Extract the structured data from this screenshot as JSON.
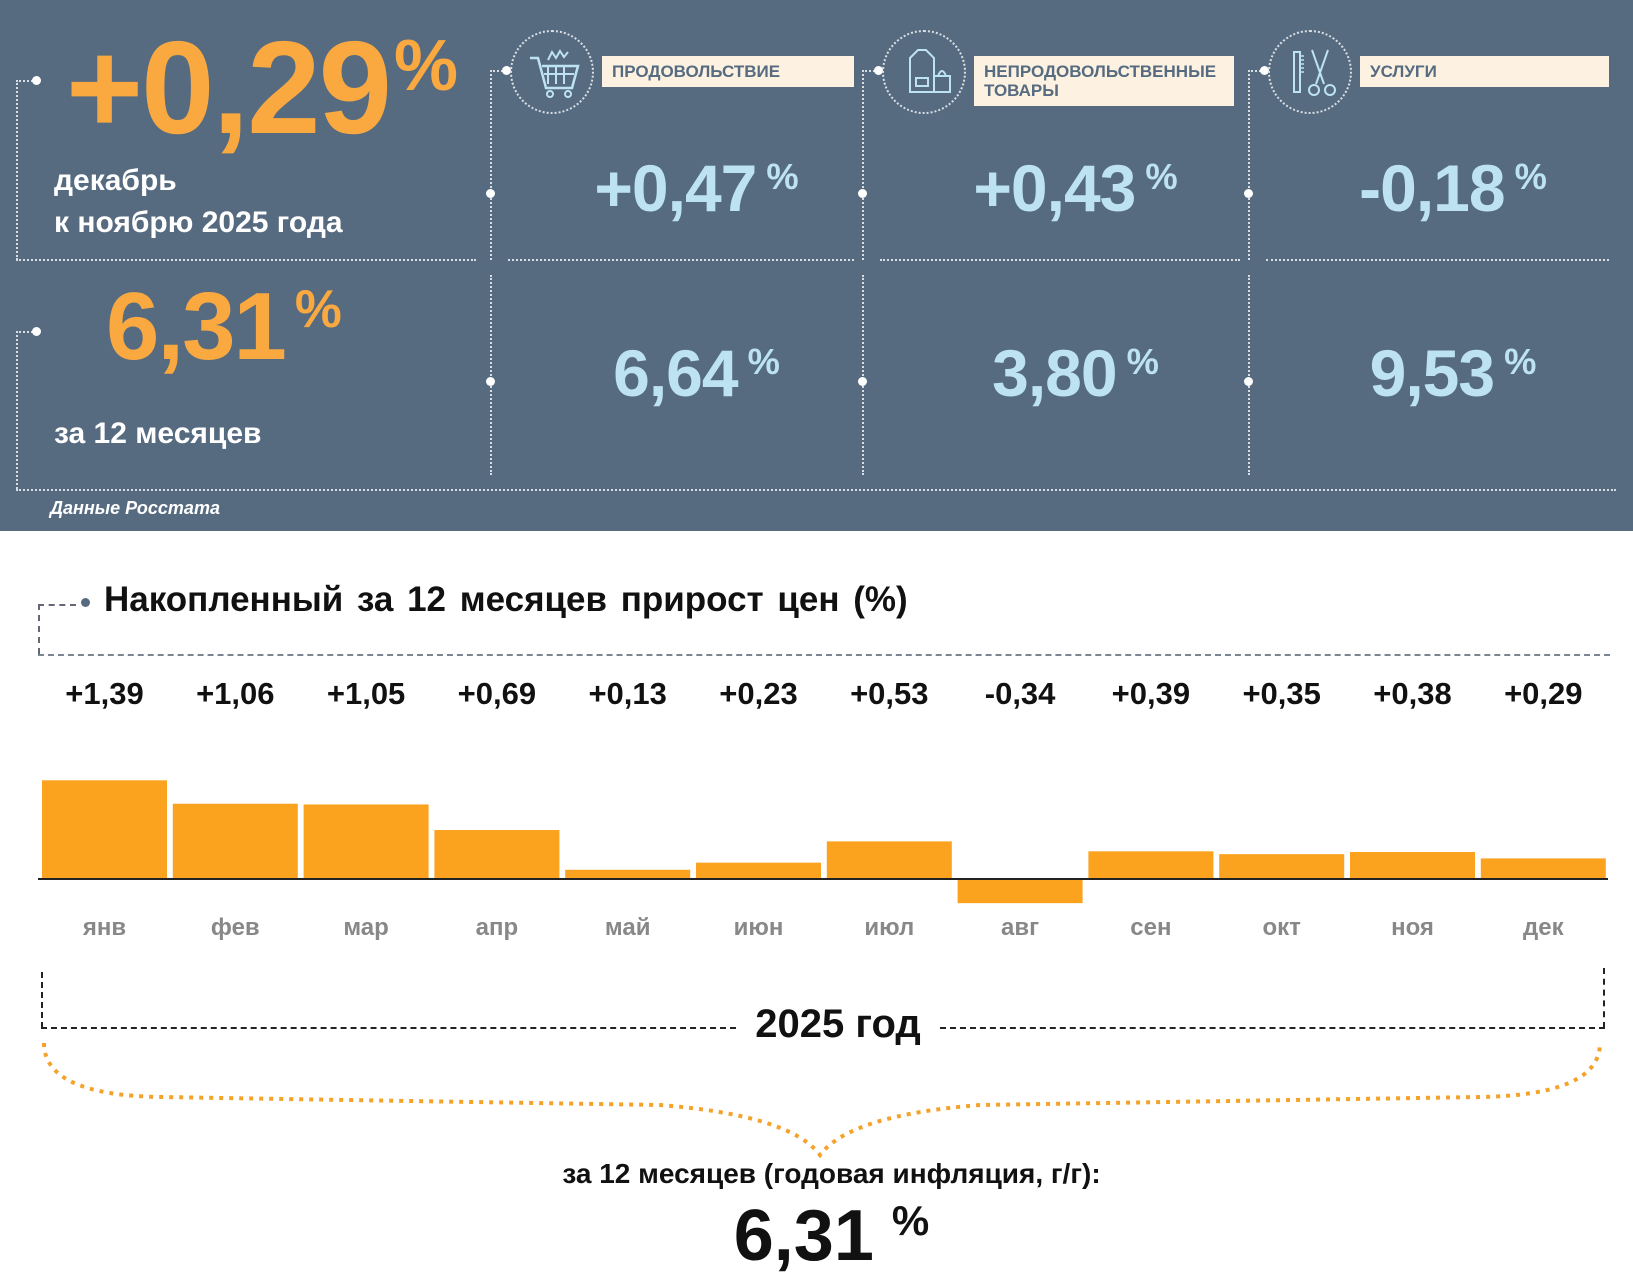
{
  "header": {
    "monthly_value": "+0,29",
    "percent": "%",
    "monthly_caption_1": "декабрь",
    "monthly_caption_2": "к ноябрю 2025 года",
    "annual_value": "6,31",
    "annual_caption": "за 12 месяцев",
    "source": "Данные Росстата",
    "categories": [
      {
        "label": "ПРОДОВОЛЬСТВИЕ",
        "icon": "shopping-cart-icon",
        "monthly": "+0,47",
        "annual": "6,64"
      },
      {
        "label": "НЕПРОДОВОЛЬСТВЕННЫЕ ТОВАРЫ",
        "icon": "clothes-bag-icon",
        "monthly": "+0,43",
        "annual": "3,80"
      },
      {
        "label": "УСЛУГИ",
        "icon": "comb-scissors-icon",
        "monthly": "-0,18",
        "annual": "9,53"
      }
    ]
  },
  "chart_data": {
    "type": "bar",
    "title": "Накопленный за 12 месяцев прирост цен (%)",
    "categories": [
      "янв",
      "фев",
      "мар",
      "апр",
      "май",
      "июн",
      "июл",
      "авг",
      "сен",
      "окт",
      "ноя",
      "дек"
    ],
    "values": [
      1.39,
      1.06,
      1.05,
      0.69,
      0.13,
      0.23,
      0.53,
      -0.34,
      0.39,
      0.35,
      0.38,
      0.29
    ],
    "value_labels": [
      "+1,39",
      "+1,06",
      "+1,05",
      "+0,69",
      "+0,13",
      "+0,23",
      "+0,53",
      "-0,34",
      "+0,39",
      "+0,35",
      "+0,38",
      "+0,29"
    ],
    "xlabel": "2025 год",
    "colors": {
      "bar": "#fba31f"
    }
  },
  "footer": {
    "caption": "за 12 месяцев (годовая инфляция, г/г):",
    "value": "6,31",
    "percent": "%"
  }
}
